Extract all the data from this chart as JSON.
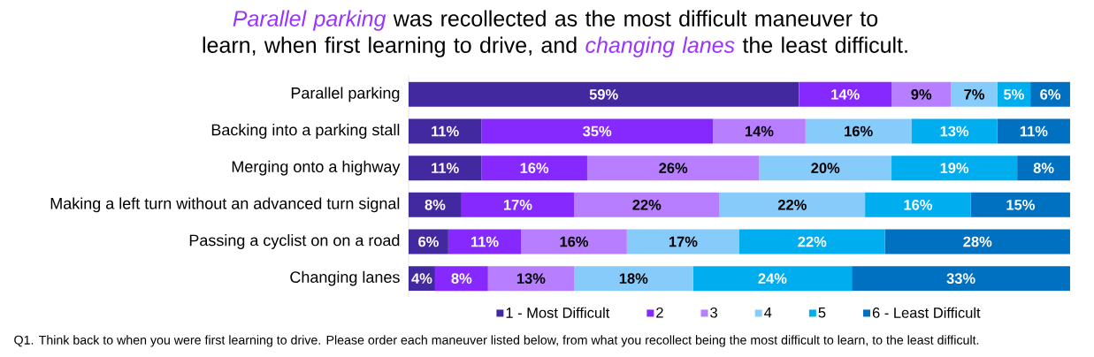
{
  "chart_data": {
    "type": "bar",
    "orientation": "horizontal",
    "stacked": true,
    "title": "*Parallel parking* was recollected as the most difficult maneuver to learn, when first learning to drive, and *changing lanes* the least difficult.",
    "categories": [
      "Parallel parking",
      "Backing into a parking stall",
      "Merging onto a highway",
      "Making a left turn without an advanced turn signal",
      "Passing a cyclist on on a road",
      "Changing lanes"
    ],
    "xlim": [
      0,
      100
    ],
    "tick_labels": "y",
    "legend": "bottom",
    "grid": false,
    "series": [
      {
        "name": "1 - Most Difficult",
        "color": "#4329a0",
        "values": [
          59,
          11,
          11,
          8,
          6,
          4
        ],
        "value_labels": [
          "59%",
          "11%",
          "11%",
          "8%",
          "6%",
          "4%"
        ]
      },
      {
        "name": "2",
        "color": "#8629ff",
        "values": [
          14,
          35,
          16,
          17,
          11,
          8
        ],
        "value_labels": [
          "14%",
          "35%",
          "16%",
          "17%",
          "11%",
          "8%"
        ]
      },
      {
        "name": "3",
        "color": "#b77fff",
        "values": [
          9,
          14,
          26,
          22,
          16,
          13
        ],
        "value_labels": [
          "9%",
          "14%",
          "26%",
          "22%",
          "16%",
          "13%"
        ]
      },
      {
        "name": "4",
        "color": "#87cbfb",
        "values": [
          7,
          16,
          20,
          22,
          17,
          18
        ],
        "value_labels": [
          "7%",
          "16%",
          "20%",
          "22%",
          "17%",
          "18%"
        ]
      },
      {
        "name": "5",
        "color": "#00aeef",
        "values": [
          5,
          13,
          19,
          16,
          22,
          24
        ],
        "value_labels": [
          "5%",
          "13%",
          "19%",
          "16%",
          "22%",
          "24%"
        ]
      },
      {
        "name": "6 - Least Difficult",
        "color": "#0070c0",
        "values": [
          6,
          11,
          8,
          15,
          28,
          33
        ],
        "value_labels": [
          "6%",
          "11%",
          "8%",
          "15%",
          "28%",
          "33%"
        ]
      }
    ],
    "annotations": [
      "Q1. Think back to when you were first learning to drive. Please order each maneuver listed below, from what you recollect being the most difficult to learn, to the least difficult."
    ]
  }
}
